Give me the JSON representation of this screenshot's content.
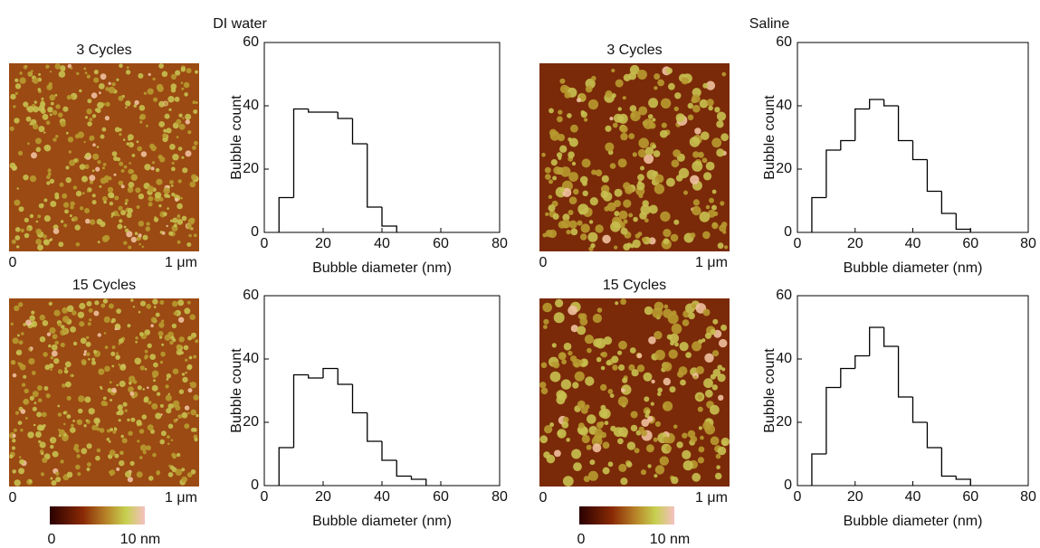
{
  "group_titles": [
    "DI water",
    "Saline"
  ],
  "images": [
    {
      "label": "3 Cycles",
      "axis_start": "0",
      "axis_end": "1 μm"
    },
    {
      "label": "15 Cycles",
      "axis_start": "0",
      "axis_end": "1 μm"
    },
    {
      "label": "3 Cycles",
      "axis_start": "0",
      "axis_end": "1 μm"
    },
    {
      "label": "15 Cycles",
      "axis_start": "0",
      "axis_end": "1 μm"
    }
  ],
  "colorbars": [
    {
      "min": "0",
      "max": "10 nm"
    },
    {
      "min": "0",
      "max": "10 nm"
    }
  ],
  "chart_data": [
    {
      "type": "histogram",
      "xlabel": "Bubble diameter (nm)",
      "ylabel": "Bubble count",
      "color": "#000000",
      "bins": [
        5,
        10,
        15,
        20,
        25,
        30,
        35,
        40,
        45
      ],
      "counts": [
        11,
        39,
        38,
        38,
        36,
        28,
        8,
        2
      ],
      "xlim": [
        0,
        80
      ],
      "xticks": [
        0,
        20,
        40,
        60,
        80
      ],
      "ylim": [
        0,
        60
      ],
      "yticks": [
        0,
        20,
        40,
        60
      ]
    },
    {
      "type": "histogram",
      "xlabel": "Bubble diameter (nm)",
      "ylabel": "Bubble count",
      "color": "#000000",
      "bins": [
        5,
        10,
        15,
        20,
        25,
        30,
        35,
        40,
        45,
        50,
        55
      ],
      "counts": [
        12,
        35,
        34,
        37,
        32,
        23,
        14,
        8,
        3,
        2
      ],
      "xlim": [
        0,
        80
      ],
      "xticks": [
        0,
        20,
        40,
        60,
        80
      ],
      "ylim": [
        0,
        60
      ],
      "yticks": [
        0,
        20,
        40,
        60
      ]
    },
    {
      "type": "histogram",
      "xlabel": "Bubble diameter (nm)",
      "ylabel": "Bubble count",
      "color": "#000000",
      "bins": [
        5,
        10,
        15,
        20,
        25,
        30,
        35,
        40,
        45,
        50,
        55,
        60
      ],
      "counts": [
        11,
        26,
        29,
        39,
        42,
        40,
        29,
        23,
        13,
        6,
        1
      ],
      "xlim": [
        0,
        80
      ],
      "xticks": [
        0,
        20,
        40,
        60,
        80
      ],
      "ylim": [
        0,
        60
      ],
      "yticks": [
        0,
        20,
        40,
        60
      ]
    },
    {
      "type": "histogram",
      "xlabel": "Bubble diameter (nm)",
      "ylabel": "Bubble count",
      "color": "#000000",
      "bins": [
        5,
        10,
        15,
        20,
        25,
        30,
        35,
        40,
        45,
        50,
        55,
        60
      ],
      "counts": [
        10,
        31,
        37,
        41,
        50,
        44,
        28,
        20,
        12,
        3,
        2
      ],
      "xlim": [
        0,
        80
      ],
      "xticks": [
        0,
        20,
        40,
        60,
        80
      ],
      "ylim": [
        0,
        60
      ],
      "yticks": [
        0,
        20,
        40,
        60
      ]
    }
  ]
}
